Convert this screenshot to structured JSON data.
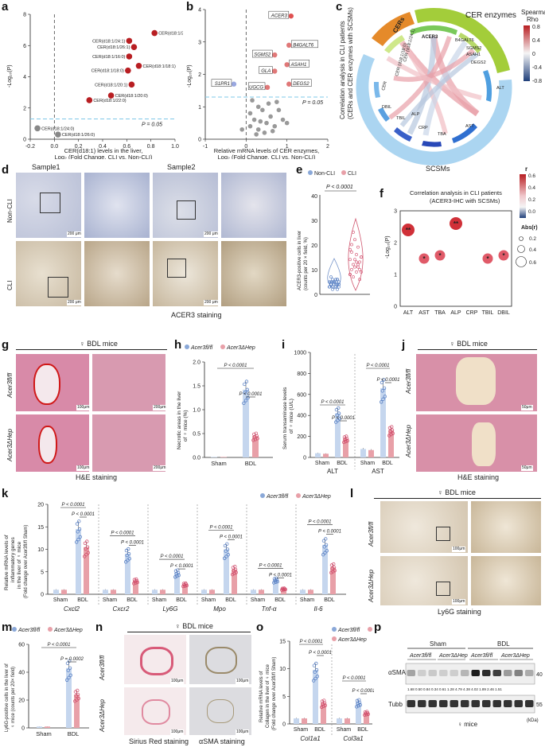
{
  "panels": {
    "a": {
      "label": "a",
      "xlabel1": "CER(d18:1) levels in the liver,",
      "xlabel2": "Log₂ (Fold Change, CLI vs. Non-CLI)",
      "ylabel": "-Log₁₀(P)",
      "pnote": "P = 0.05"
    },
    "b": {
      "label": "b",
      "xlabel1": "Relative mRNA levels of CER enzymes,",
      "xlabel2": "Log₂ (Fold Change, CLI vs. Non-CLI)",
      "ylabel": "-Log₁₀(P)",
      "pnote": "P = 0.05"
    },
    "c": {
      "label": "c",
      "side1": "Correlation analysis in CLI patients",
      "side2": "(CERs and CER enzymes with SCSMs)",
      "arc_cers": "CERs",
      "arc_enz": "CER enzymes",
      "arc_scsm": "SCSMs",
      "legend_title1": "Spearman",
      "legend_title2": "Rho",
      "legend_ticks": [
        "0.8",
        "0.4",
        "0",
        "-0.4",
        "-0.8"
      ],
      "nodes": [
        "CER (d18:1/18:0)",
        "CER (d18:1/24:1)",
        "ACER3",
        "B4GALT6",
        "SGMS2",
        "ASAH1",
        "DEGS2",
        "ALT",
        "AST",
        "TBA",
        "CRP",
        "ALP",
        "TBIL",
        "DBIL",
        "CER"
      ]
    },
    "d": {
      "label": "d",
      "sample1": "Sample1",
      "sample2": "Sample2",
      "row1": "Non-CLI",
      "row2": "CLI",
      "caption": "ACER3 staining",
      "scale": "200 μm"
    },
    "e": {
      "label": "e",
      "legend": [
        "Non-CLI",
        "CLI"
      ],
      "p": "P < 0.0001",
      "ylabel1": "ACER3-positive cells in liver",
      "ylabel2": "(counts per 20 × field, %)",
      "yticks": [
        "0",
        "10",
        "20",
        "30",
        "40"
      ]
    },
    "f": {
      "label": "f",
      "title1": "Correlation analysis in CLI patients",
      "title2": "(ACER3-IHC with SCSMs)",
      "ylabel": "-Log₁₀(P)",
      "r_title": "r",
      "abs_title": "Abs(r)",
      "r_ticks": [
        "0.6",
        "0.4",
        "0.2",
        "0.0"
      ],
      "abs_ticks": [
        "0.2",
        "0.4",
        "0.6"
      ]
    },
    "g": {
      "label": "g",
      "title": "♀ BDL mice",
      "row1": "Acer3fl/fl",
      "row2": "Acer3ΔHep",
      "caption": "H&E staining",
      "s1": "100μm",
      "s2": "200μm"
    },
    "h": {
      "label": "h",
      "legend1": "Acer3fl/fl",
      "legend2": "Acer3ΔHep",
      "ylabel1": "Necrotic areas in the liver",
      "ylabel2": "of ♀ mice (%)",
      "p": "P < 0.0001",
      "x": [
        "Sham",
        "BDL"
      ]
    },
    "i": {
      "label": "i",
      "ylabel1": "Serum transaminase levels",
      "ylabel2": "of ♀ mice (U/L)",
      "p": "P < 0.0001",
      "groups": [
        "ALT",
        "AST"
      ]
    },
    "j": {
      "label": "j",
      "title": "♀ BDL mice",
      "row1": "Acer3fl/fl",
      "row2": "Acer3ΔHep",
      "caption": "H&E staining",
      "s": "50μm"
    },
    "k": {
      "label": "k",
      "ylabel1": "Relative mRNA levels of",
      "ylabel2": "inflammatory genes",
      "ylabel3": "in the liver of ♀ mice",
      "ylabel4": "(Fold change over Acer3fl/fl Sham)",
      "p": "P < 0.0001",
      "genes": [
        "Cxcl2",
        "Cxcr2",
        "Ly6G",
        "Mpo",
        "Tnf-α",
        "Il-6"
      ]
    },
    "l": {
      "label": "l",
      "title": "♀ BDL mice",
      "caption": "Ly6G staining",
      "s": "100μm"
    },
    "m": {
      "label": "m",
      "ylabel1": "Ly6G-positive cells in the liver of",
      "ylabel2": "♀ mice (counts per 20× field)",
      "p1": "P < 0.0001",
      "p2": "P = 0.0002"
    },
    "n": {
      "label": "n",
      "title": "♀ BDL mice",
      "cap1": "Sirius Red staining",
      "cap2": "αSMA staining",
      "s": "100μm"
    },
    "o": {
      "label": "o",
      "ylabel1": "Relative mRNA levels of",
      "ylabel2": "Collagen in the liver of ♀ mice",
      "ylabel3": "(Fold change over Acer3fl/fl Sham)",
      "p": "P < 0.0001",
      "genes": [
        "Col1a1",
        "Col3a1"
      ]
    },
    "p": {
      "label": "p",
      "sham": "Sham",
      "bdl": "BDL",
      "g1": "Acer3fl/fl",
      "g2": "Acer3ΔHep",
      "band1": "αSMA",
      "band2": "Tubb",
      "quant": "1.68 0.50 0.84 0.34 0.61 1.28 4.79 4.38 4.02 1.89 2.46 1.51",
      "kda": "(kDa)",
      "m40": "40",
      "m55": "55",
      "mice": "♀ mice"
    }
  },
  "chart_data": [
    {
      "type": "scatter",
      "title": "a",
      "xlim": [
        -0.2,
        1.0
      ],
      "ylim": [
        0,
        8
      ],
      "points": [
        {
          "label": "CER(d18:1/22:1)",
          "x": 0.83,
          "y": 6.8
        },
        {
          "label": "CER(d18:1/24:1)",
          "x": 0.62,
          "y": 6.3
        },
        {
          "label": "CER(d18:1/26:1)",
          "x": 0.66,
          "y": 5.9
        },
        {
          "label": "CER(d18:1/16:0)",
          "x": 0.62,
          "y": 5.3
        },
        {
          "label": "CER(d18:1/18:1)",
          "x": 0.7,
          "y": 4.7
        },
        {
          "label": "CER(d18:1/18:0)",
          "x": 0.61,
          "y": 4.4
        },
        {
          "label": "CER(d18:1/20:1)",
          "x": 0.64,
          "y": 3.5
        },
        {
          "label": "CER(d18:1/20:0)",
          "x": 0.47,
          "y": 2.8
        },
        {
          "label": "CER(d18:1/22:0)",
          "x": 0.29,
          "y": 2.5
        },
        {
          "label": "CER(d18:1/24:0)",
          "x": -0.14,
          "y": 0.7
        },
        {
          "label": "CER(d18:1/26:0)",
          "x": 0.03,
          "y": 0.3
        }
      ],
      "threshold": 1.3
    },
    {
      "type": "scatter",
      "title": "b",
      "xlim": [
        -1,
        2
      ],
      "ylim": [
        0,
        4
      ],
      "points": [
        {
          "label": "ACER3",
          "x": 1.1,
          "y": 3.8
        },
        {
          "label": "B4GALT6",
          "x": 1.05,
          "y": 2.9
        },
        {
          "label": "SGMS2",
          "x": 0.7,
          "y": 2.6
        },
        {
          "label": "ASAH1",
          "x": 1.0,
          "y": 2.3
        },
        {
          "label": "GLA",
          "x": 0.7,
          "y": 2.1
        },
        {
          "label": "UGCG",
          "x": 0.52,
          "y": 1.6
        },
        {
          "label": "DEGS2",
          "x": 1.05,
          "y": 1.7
        },
        {
          "label": "S1PR1",
          "x": -0.3,
          "y": 1.7
        }
      ],
      "threshold": 1.3
    },
    {
      "type": "scatter",
      "title": "f",
      "categories": [
        "ALT",
        "AST",
        "TBA",
        "ALP",
        "CRP",
        "TBIL",
        "DBIL"
      ],
      "values": [
        2.4,
        1.5,
        1.6,
        2.6,
        null,
        1.5,
        1.6
      ],
      "ylim": [
        0,
        3
      ],
      "sig": [
        "**",
        "*",
        "*",
        "**",
        "",
        "*",
        "*"
      ]
    },
    {
      "type": "bar",
      "title": "h",
      "categories": [
        "Sham",
        "BDL"
      ],
      "series": [
        {
          "name": "Acer3fl/fl",
          "values": [
            0,
            1.42
          ]
        },
        {
          "name": "Acer3ΔHep",
          "values": [
            0,
            0.45
          ]
        }
      ],
      "ylim": [
        0,
        2
      ],
      "yticks": [
        "0.0",
        "0.5",
        "1.0",
        "1.5",
        "2.0"
      ]
    },
    {
      "type": "bar",
      "title": "i",
      "categories": [
        "Sham ALT",
        "BDL ALT",
        "Sham AST",
        "BDL AST"
      ],
      "series": [
        {
          "name": "Acer3fl/fl",
          "values": [
            40,
            420,
            80,
            660
          ]
        },
        {
          "name": "Acer3ΔHep",
          "values": [
            35,
            180,
            70,
            260
          ]
        }
      ],
      "ylim": [
        0,
        1000
      ],
      "yticks": [
        "0",
        "200",
        "400",
        "600",
        "800",
        "1000"
      ]
    },
    {
      "type": "bar",
      "title": "k",
      "categories": [
        "Cxcl2",
        "Cxcr2",
        "Ly6G",
        "Mpo",
        "Tnf-α",
        "Il-6"
      ],
      "series": [
        {
          "name": "Acer3fl/fl Sham",
          "values": [
            1,
            1,
            1,
            1,
            1,
            1
          ]
        },
        {
          "name": "Acer3ΔHep Sham",
          "values": [
            1,
            1,
            1,
            1,
            1,
            1
          ]
        },
        {
          "name": "Acer3fl/fl BDL",
          "values": [
            14.5,
            9,
            4.8,
            10,
            3.2,
            11
          ]
        },
        {
          "name": "Acer3ΔHep BDL",
          "values": [
            10.5,
            3,
            2.2,
            5.5,
            1.2,
            6
          ]
        }
      ],
      "ylim": [
        0,
        20
      ],
      "yticks": [
        "0",
        "5",
        "10",
        "15",
        "20"
      ]
    },
    {
      "type": "bar",
      "title": "m",
      "categories": [
        "Sham",
        "BDL"
      ],
      "series": [
        {
          "name": "Acer3fl/fl",
          "values": [
            1,
            43
          ]
        },
        {
          "name": "Acer3ΔHep",
          "values": [
            1,
            24
          ]
        }
      ],
      "ylim": [
        0,
        60
      ],
      "yticks": [
        "0",
        "20",
        "40",
        "60"
      ]
    },
    {
      "type": "bar",
      "title": "o",
      "categories": [
        "Sham Col1a1",
        "BDL Col1a1",
        "Sham Col3a1",
        "BDL Col3a1"
      ],
      "series": [
        {
          "name": "Acer3fl/fl",
          "values": [
            1,
            9.8,
            1,
            3.9
          ]
        },
        {
          "name": "Acer3ΔHep",
          "values": [
            1,
            3.8,
            1,
            2.0
          ]
        }
      ],
      "ylim": [
        0,
        15
      ],
      "yticks": [
        "0",
        "5",
        "10",
        "15"
      ]
    }
  ],
  "colors": {
    "red": "#b81e22",
    "pink": "#e8a0a8",
    "blue": "#8aa8d8",
    "lightblue": "#c5d6ee",
    "gray": "#888888",
    "dash": "#7fc8e8",
    "orange": "#e58a2a",
    "green": "#a3cd3a",
    "sky": "#66b3e6"
  }
}
